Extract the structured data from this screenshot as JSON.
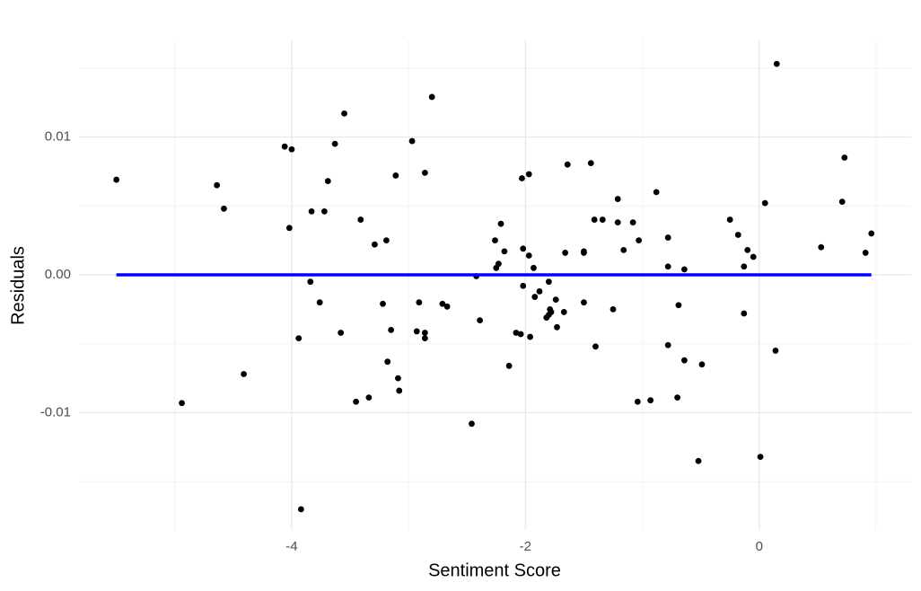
{
  "chart_data": {
    "type": "scatter",
    "xlabel": "Sentiment Score",
    "ylabel": "Residuals",
    "xlim": [
      -5.82,
      1.3
    ],
    "ylim": [
      -0.0185,
      0.017
    ],
    "xticks": [
      -4,
      -2,
      0
    ],
    "xminor": [
      -5,
      -3,
      -1,
      1
    ],
    "yticks": [
      {
        "value": -0.01,
        "label": "-0.01"
      },
      {
        "value": 0,
        "label": "0.00"
      },
      {
        "value": 0.01,
        "label": "0.01"
      }
    ],
    "yminor": [
      -0.015,
      -0.005,
      0.005,
      0.015
    ],
    "grid": true,
    "color": "#000000",
    "x": [
      -5.5,
      -4.94,
      -4.64,
      -4.58,
      -4.41,
      -4.06,
      -4.0,
      -4.02,
      -3.94,
      -3.92,
      -3.84,
      -3.83,
      -3.76,
      -3.72,
      -3.69,
      -3.63,
      -3.58,
      -3.55,
      -3.41,
      -3.45,
      -3.34,
      -3.29,
      -3.22,
      -3.19,
      -3.18,
      -3.15,
      -3.11,
      -3.09,
      -3.08,
      -2.97,
      -2.93,
      -2.91,
      -2.86,
      -2.86,
      -2.86,
      -2.8,
      -2.71,
      -2.67,
      -2.46,
      -2.42,
      -2.39,
      -2.26,
      -2.25,
      -2.23,
      -2.21,
      -2.18,
      -2.14,
      -2.08,
      -2.04,
      -2.03,
      -2.02,
      -2.02,
      -1.97,
      -1.97,
      -1.96,
      -1.93,
      -1.92,
      -1.88,
      -1.82,
      -1.8,
      -1.79,
      -1.8,
      -1.78,
      -1.74,
      -1.73,
      -1.67,
      -1.66,
      -1.64,
      -1.5,
      -1.5,
      -1.5,
      -1.44,
      -1.41,
      -1.4,
      -1.34,
      -1.25,
      -1.21,
      -1.21,
      -1.16,
      -1.08,
      -1.04,
      -1.03,
      -0.93,
      -0.88,
      -0.78,
      -0.78,
      -0.78,
      -0.7,
      -0.69,
      -0.64,
      -0.64,
      -0.52,
      -0.49,
      -0.25,
      -0.18,
      -0.13,
      -0.13,
      -0.1,
      -0.05,
      0.01,
      0.05,
      0.14,
      0.15,
      0.53,
      0.71,
      0.73,
      0.91,
      0.96
    ],
    "values": [
      0.0069,
      -0.0093,
      0.0065,
      0.0048,
      -0.0072,
      0.0093,
      0.0091,
      0.0034,
      -0.0046,
      -0.017,
      -0.0005,
      0.0046,
      -0.002,
      0.0046,
      0.0068,
      0.0095,
      -0.0042,
      0.0117,
      0.004,
      -0.0092,
      -0.0089,
      0.0022,
      -0.0021,
      0.0025,
      -0.0063,
      -0.004,
      0.0072,
      -0.0075,
      -0.0084,
      0.0097,
      -0.0041,
      -0.002,
      0.0074,
      -0.0042,
      -0.0046,
      0.0129,
      -0.0021,
      -0.0023,
      -0.0108,
      -0.0001,
      -0.0033,
      0.0025,
      0.0005,
      0.0008,
      0.0037,
      0.0017,
      -0.0066,
      -0.0042,
      -0.0043,
      0.007,
      0.0019,
      -0.0008,
      0.0073,
      0.0014,
      -0.0045,
      0.0005,
      -0.0016,
      -0.0012,
      -0.0031,
      -0.0029,
      -0.0025,
      -0.0005,
      -0.0027,
      -0.0018,
      -0.0038,
      -0.0027,
      0.0016,
      0.008,
      0.0016,
      -0.002,
      0.0017,
      0.0081,
      0.004,
      -0.0052,
      0.004,
      -0.0025,
      0.0055,
      0.0038,
      0.0018,
      0.0038,
      -0.0092,
      0.0025,
      -0.0091,
      0.006,
      0.0006,
      0.0027,
      -0.0051,
      -0.0089,
      -0.0022,
      0.0004,
      -0.0062,
      -0.0135,
      -0.0065,
      0.004,
      0.0029,
      -0.0028,
      0.0006,
      0.0018,
      0.0013,
      -0.0132,
      0.0052,
      -0.0055,
      0.0153,
      0.002,
      0.0053,
      0.0085,
      0.0016,
      0.003
    ],
    "fit": {
      "color": "#0000ff",
      "x": [
        -5.5,
        0.96
      ],
      "values": [
        0,
        0
      ]
    }
  }
}
